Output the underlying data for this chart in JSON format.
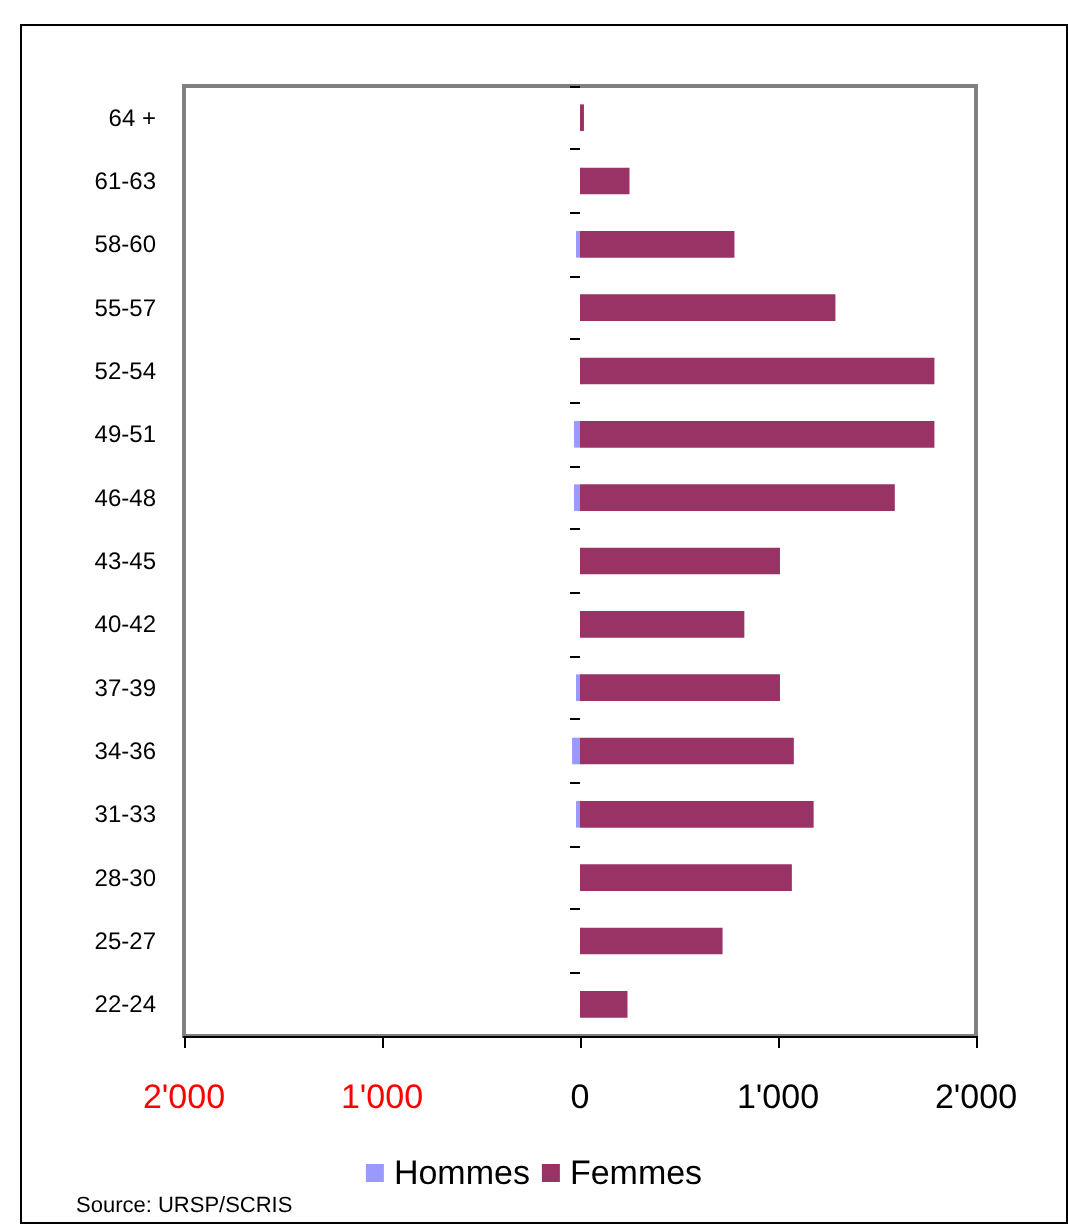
{
  "chart_data": {
    "type": "bar",
    "orientation": "horizontal",
    "categories": [
      "64 +",
      "61-63",
      "58-60",
      "55-57",
      "52-54",
      "49-51",
      "46-48",
      "43-45",
      "40-42",
      "37-39",
      "34-36",
      "31-33",
      "28-30",
      "25-27",
      "22-24"
    ],
    "series": [
      {
        "name": "Hommes",
        "color": "#9999ff",
        "values": [
          0,
          0,
          -20,
          0,
          0,
          -30,
          -30,
          0,
          0,
          -20,
          -40,
          -20,
          0,
          0,
          0
        ]
      },
      {
        "name": "Femmes",
        "color": "#993366",
        "values": [
          20,
          250,
          780,
          1290,
          1790,
          1790,
          1590,
          1010,
          830,
          1010,
          1080,
          1180,
          1070,
          720,
          240
        ]
      }
    ],
    "xlim": [
      -2000,
      2000
    ],
    "xticks": [
      {
        "value": -2000,
        "label": "2'000"
      },
      {
        "value": -1000,
        "label": "1'000"
      },
      {
        "value": 0,
        "label": "0"
      },
      {
        "value": 1000,
        "label": "1'000"
      },
      {
        "value": 2000,
        "label": "2'000"
      }
    ],
    "grid": false,
    "legend": "bottom",
    "annotations": [
      "Source:  URSP/SCRIS"
    ]
  }
}
